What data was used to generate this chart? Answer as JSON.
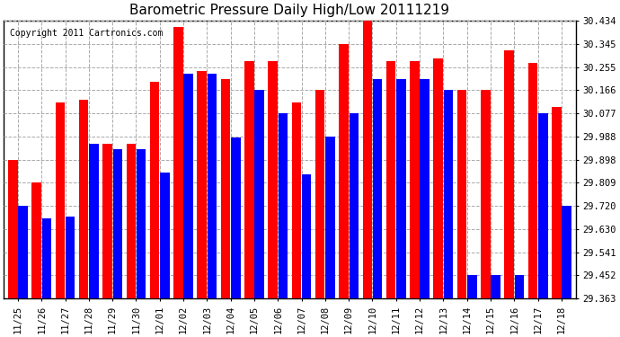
{
  "title": "Barometric Pressure Daily High/Low 20111219",
  "copyright": "Copyright 2011 Cartronics.com",
  "categories": [
    "11/25",
    "11/26",
    "11/27",
    "11/28",
    "11/29",
    "11/30",
    "12/01",
    "12/02",
    "12/03",
    "12/04",
    "12/05",
    "12/06",
    "12/07",
    "12/08",
    "12/09",
    "12/10",
    "12/11",
    "12/12",
    "12/13",
    "12/14",
    "12/15",
    "12/16",
    "12/17",
    "12/18"
  ],
  "high_values": [
    29.898,
    29.809,
    30.12,
    30.13,
    29.96,
    29.96,
    30.2,
    30.41,
    30.24,
    30.21,
    30.28,
    30.28,
    30.12,
    30.166,
    30.345,
    30.434,
    30.28,
    30.28,
    30.29,
    30.166,
    30.166,
    30.32,
    30.27,
    30.1
  ],
  "low_values": [
    29.72,
    29.67,
    29.68,
    29.96,
    29.94,
    29.94,
    29.85,
    30.23,
    30.23,
    29.985,
    30.166,
    30.077,
    29.84,
    29.988,
    30.077,
    30.21,
    30.21,
    30.21,
    30.166,
    29.452,
    29.452,
    29.452,
    30.077,
    29.72
  ],
  "yticks": [
    29.363,
    29.452,
    29.541,
    29.63,
    29.72,
    29.809,
    29.898,
    29.988,
    30.077,
    30.166,
    30.255,
    30.345,
    30.434
  ],
  "ymin": 29.363,
  "ymax": 30.434,
  "bar_color_high": "#ff0000",
  "bar_color_low": "#0000ff",
  "background_color": "#ffffff",
  "grid_color": "#aaaaaa",
  "title_fontsize": 11,
  "copyright_fontsize": 7
}
